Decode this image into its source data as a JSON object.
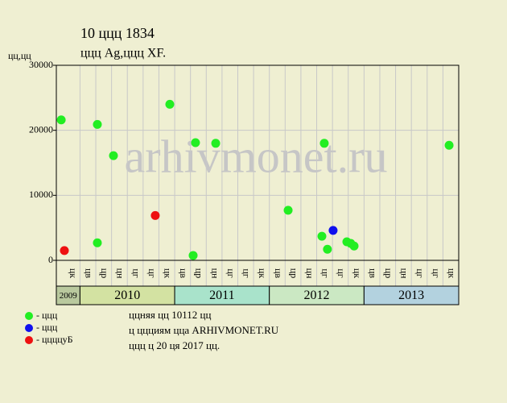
{
  "chart_data": {
    "type": "scatter",
    "title": "10 ццц 1834",
    "subtitle": "ццц Ag,ццц XF.",
    "y_label": "цц,цц",
    "watermark": "arhivmonet.ru",
    "categories": [
      "цк",
      "цв",
      "цр",
      "цн",
      "цг",
      "цг",
      "цк",
      "цв",
      "цр",
      "цн",
      "цг",
      "цг",
      "цк",
      "цв",
      "цр",
      "цн",
      "цг",
      "цг",
      "цк",
      "цв",
      "цр",
      "цн",
      "цг",
      "цг",
      "цк"
    ],
    "years": [
      "2009",
      "2010",
      "2011",
      "2012",
      "2013"
    ],
    "year_colors": [
      "#b9c99e",
      "#d3e2a2",
      "#a9e3cb",
      "#cbe8c3",
      "#b3d2df"
    ],
    "xlim": [
      0,
      25.5
    ],
    "ylim": [
      0,
      30000
    ],
    "yticks": [
      0,
      10000,
      20000,
      30000
    ],
    "grid": true,
    "series": [
      {
        "name": "- ццц",
        "color": "#22ee22",
        "x": [
          0.31,
          2.6,
          2.6,
          3.62,
          7.19,
          8.67,
          8.82,
          10.1,
          14.69,
          16.83,
          16.98,
          17.18,
          18.41,
          18.66,
          18.87,
          24.89
        ],
        "values": [
          21600,
          20900,
          2700,
          16100,
          24000,
          750,
          18100,
          18000,
          7700,
          3700,
          18000,
          1700,
          2850,
          2600,
          2200,
          17700
        ]
      },
      {
        "name": "- ццц",
        "color": "#1010ee",
        "x": [
          17.54
        ],
        "values": [
          4600
        ]
      },
      {
        "name": "- ццццуБ",
        "color": "#ee1010",
        "x": [
          0.51,
          6.27
        ],
        "values": [
          1500,
          6900
        ]
      }
    ],
    "notes": [
      "ццняя цц 10112 цц",
      "ц ццциям цца ARHIVMONET.RU",
      "ццц ц 20 ця 2017 цц."
    ]
  }
}
